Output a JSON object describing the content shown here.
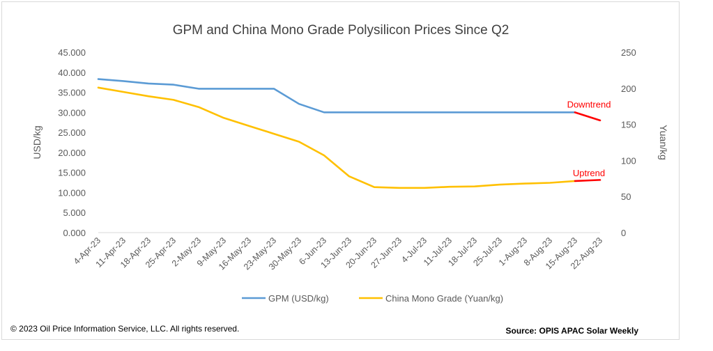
{
  "chart_data": {
    "type": "line",
    "title": "GPM and China Mono Grade Polysilicon Prices Since Q2",
    "xlabel": "",
    "ylabel": "USD/kg",
    "y2label": "Yuan/kg",
    "ylim": [
      0,
      45
    ],
    "y2lim": [
      0,
      250
    ],
    "y_ticks": [
      "0.000",
      "5.000",
      "10.000",
      "15.000",
      "20.000",
      "25.000",
      "30.000",
      "35.000",
      "40.000",
      "45.000"
    ],
    "y2_ticks": [
      "0",
      "50",
      "100",
      "150",
      "200",
      "250"
    ],
    "categories": [
      "4-Apr-23",
      "11-Apr-23",
      "18-Apr-23",
      "25-Apr-23",
      "2-May-23",
      "9-May-23",
      "16-May-23",
      "23-May-23",
      "30-May-23",
      "6-Jun-23",
      "13-Jun-23",
      "20-Jun-23",
      "27-Jun-23",
      "4-Jul-23",
      "11-Jul-23",
      "18-Jul-23",
      "25-Jul-23",
      "1-Aug-23",
      "8-Aug-23",
      "15-Aug-23",
      "22-Aug-23"
    ],
    "series": [
      {
        "name": "GPM (USD/kg)",
        "axis": "left",
        "color": "#5b9bd5",
        "values": [
          38.3,
          37.8,
          37.2,
          36.9,
          35.9,
          35.9,
          35.9,
          35.9,
          32.1,
          30.0,
          30.0,
          30.0,
          30.0,
          30.0,
          30.0,
          30.0,
          30.0,
          30.0,
          30.0,
          30.0,
          null
        ]
      },
      {
        "name": "China Mono Grade (Yuan/kg)",
        "axis": "right",
        "color": "#ffc000",
        "values": [
          201,
          195,
          189,
          184,
          174,
          159,
          148,
          137,
          126,
          107,
          78,
          63,
          62,
          62,
          63.5,
          64,
          66.5,
          68,
          69,
          71.5,
          null
        ]
      }
    ],
    "trend_segments": [
      {
        "label": "Downtrend",
        "axis": "left",
        "color": "#ff0000",
        "from": {
          "x": "15-Aug-23",
          "y": 30.0
        },
        "to": {
          "x": "22-Aug-23",
          "y": 28.0
        }
      },
      {
        "label": "Uptrend",
        "axis": "right",
        "color": "#ff0000",
        "from": {
          "x": "15-Aug-23",
          "y": 71.5
        },
        "to": {
          "x": "22-Aug-23",
          "y": 73.0
        }
      }
    ],
    "grid": false,
    "legend_position": "bottom"
  },
  "footer": {
    "copyright": "© 2023 Oil Price Information Service, LLC. All rights reserved.",
    "source": "Source: OPIS APAC Solar Weekly"
  }
}
